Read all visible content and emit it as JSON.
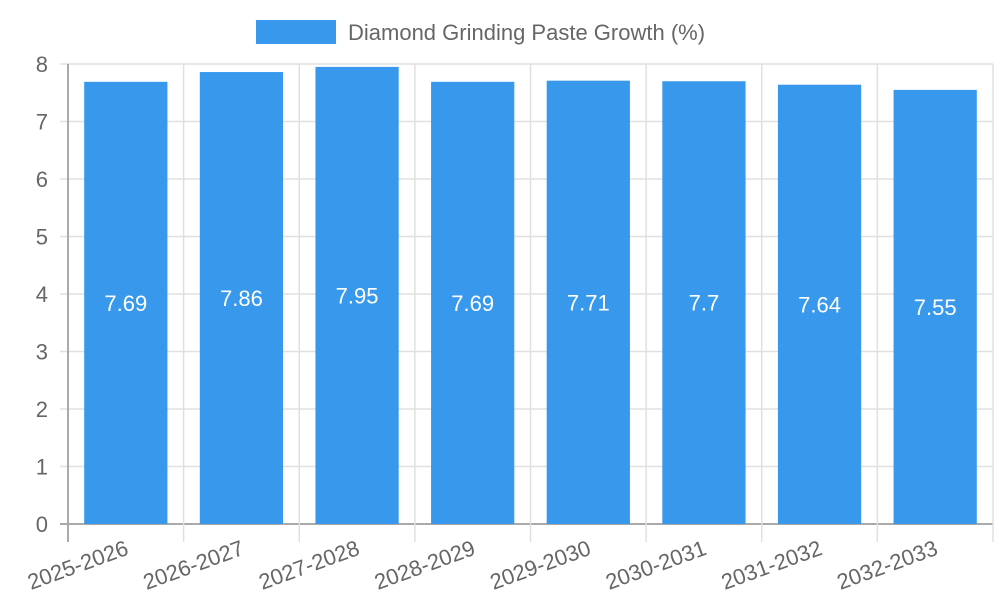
{
  "chart_data": {
    "type": "bar",
    "title": "",
    "legend": [
      "Diamond Grinding Paste Growth (%)"
    ],
    "legend_position": "top",
    "categories": [
      "2025-2026",
      "2026-2027",
      "2027-2028",
      "2028-2029",
      "2029-2030",
      "2030-2031",
      "2031-2032",
      "2032-2033"
    ],
    "series": [
      {
        "name": "Diamond Grinding Paste Growth (%)",
        "values": [
          7.69,
          7.86,
          7.95,
          7.69,
          7.71,
          7.7,
          7.64,
          7.55
        ],
        "color": "#3899ec"
      }
    ],
    "data_labels": [
      "7.69",
      "7.86",
      "7.95",
      "7.69",
      "7.71",
      "7.7",
      "7.64",
      "7.55"
    ],
    "xlabel": "",
    "ylabel": "",
    "ylim": [
      0,
      8
    ],
    "yticks": [
      "0",
      "1",
      "2",
      "3",
      "4",
      "5",
      "6",
      "7",
      "8"
    ],
    "grid": true
  }
}
